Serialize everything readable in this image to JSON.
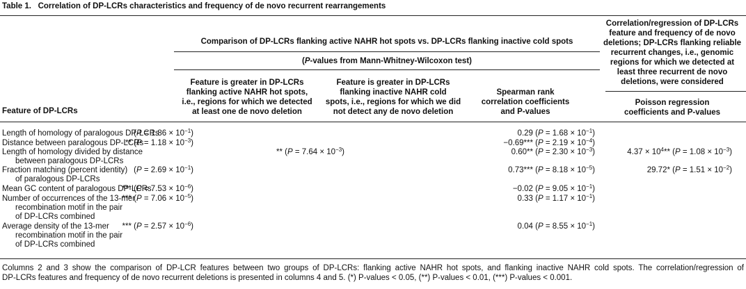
{
  "header": {
    "label": "Table 1.",
    "title": "Correlation of DP-LCRs characteristics and frequency of de novo recurrent rearrangements"
  },
  "table": {
    "group_header": "Comparison of DP-LCRs flanking active NAHR hot spots vs. DP-LCRs flanking inactive cold spots",
    "test_note": [
      "(",
      {
        "i": "P"
      },
      "-values from Mann-Whitney-Wilcoxon test)"
    ],
    "columns": [
      [
        "Feature of DP-LCRs"
      ],
      [
        "Feature is greater in DP-LCRs",
        "flanking active NAHR hot spots,",
        "i.e., regions for which we detected",
        "at least one de novo deletion"
      ],
      [
        "Feature is greater in DP-LCRs",
        "flanking inactive NAHR cold",
        "spots, i.e., regions for which we did",
        "not detect any de novo deletion"
      ],
      [
        "Spearman rank",
        "correlation coefficients",
        "and P-values"
      ],
      [
        "Poisson regression",
        "coefficients and P-values"
      ]
    ],
    "col5_group_header": [
      "Correlation/regression of DP-LCRs",
      "feature and frequency of de novo",
      "deletions; DP-LCRs flanking reliable",
      "recurrent changes, i.e., genomic",
      "regions for which we detected at",
      "least three recurrent de novo",
      "deletions, were considered"
    ],
    "rows": [
      [
        [
          "Length of homology of paralogous DP-LCRs"
        ],
        [
          "(",
          {
            "i": "P"
          },
          " = 1.86 × 10",
          {
            "sup": "−1"
          },
          ")"
        ],
        null,
        [
          "0.29 (",
          {
            "i": "P"
          },
          " = 1.68 × 10",
          {
            "sup": "−1"
          },
          ")"
        ],
        null
      ],
      [
        [
          "Distance between paralogous DP-LCRs"
        ],
        [
          "** (",
          {
            "i": "P"
          },
          " = 1.18 × 10",
          {
            "sup": "−3"
          },
          ")"
        ],
        null,
        [
          "−0.69*** (",
          {
            "i": "P"
          },
          " = 2.19 × 10",
          {
            "sup": "−4"
          },
          ")"
        ],
        null
      ],
      [
        [
          "Length of homology divided by distance",
          "between paralogous DP-LCRs"
        ],
        null,
        [
          "** (",
          {
            "i": "P"
          },
          " = 7.64 × 10",
          {
            "sup": "−3"
          },
          ")"
        ],
        [
          "0.60** (",
          {
            "i": "P"
          },
          " = 2.30 × 10",
          {
            "sup": "−3"
          },
          ")"
        ],
        [
          "4.37 × 10",
          {
            "sup": "4"
          },
          "** (",
          {
            "i": "P"
          },
          " = 1.08 × 10",
          {
            "sup": "−3"
          },
          ")"
        ]
      ],
      [
        [
          "Fraction matching (percent identity)",
          "of paralogous DP-LCRs"
        ],
        [
          "(",
          {
            "i": "P"
          },
          " = 2.69 × 10",
          {
            "sup": "−1"
          },
          ")"
        ],
        null,
        [
          "0.73*** (",
          {
            "i": "P"
          },
          " = 8.18 × 10",
          {
            "sup": "−5"
          },
          ")"
        ],
        [
          "29.72* (",
          {
            "i": "P"
          },
          " = 1.51 × 10",
          {
            "sup": "−2"
          },
          ")"
        ]
      ],
      [
        [
          "Mean GC content of paralogous DP-LCRs"
        ],
        [
          "*** (",
          {
            "i": "P"
          },
          " = 7.53 × 10",
          {
            "sup": "−6"
          },
          ")"
        ],
        null,
        [
          "−0.02 (",
          {
            "i": "P"
          },
          " = 9.05 × 10",
          {
            "sup": "−1"
          },
          ")"
        ],
        null
      ],
      [
        [
          "Number of occurrences of the 13-mer",
          "recombination motif in the pair",
          "of DP-LCRs combined"
        ],
        [
          "*** (",
          {
            "i": "P"
          },
          " = 7.06 × 10",
          {
            "sup": "−5"
          },
          ")"
        ],
        null,
        [
          "0.33 (",
          {
            "i": "P"
          },
          " = 1.17 × 10",
          {
            "sup": "−1"
          },
          ")"
        ],
        null
      ],
      [
        [
          "Average density of the 13-mer",
          "recombination motif in the pair",
          "of DP-LCRs combined"
        ],
        [
          "*** (",
          {
            "i": "P"
          },
          " = 2.57 × 10",
          {
            "sup": "−6"
          },
          ")"
        ],
        null,
        [
          "0.04 (",
          {
            "i": "P"
          },
          " = 8.55 × 10",
          {
            "sup": "−1"
          },
          ")"
        ],
        null
      ]
    ]
  },
  "footnote": [
    "Columns 2 and 3 show the comparison of DP-LCR features between two groups of DP-LCRs: flanking active NAHR hot spots, and flanking inactive NAHR cold spots. The correlation/regression of",
    "DP-LCRs features and frequency of de novo recurrent deletions is presented in columns 4 and 5. (*) P-values < 0.05, (**) P-values < 0.01, (***) P-values < 0.001."
  ]
}
